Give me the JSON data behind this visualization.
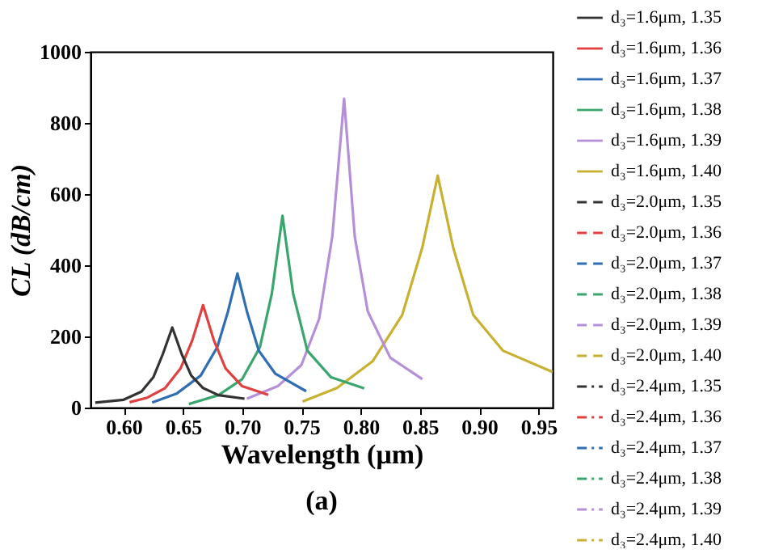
{
  "chart_data": {
    "type": "line",
    "xlabel": "Wavelength (μm)",
    "ylabel": "CL (dB/cm)",
    "annotations": [
      "(a)"
    ],
    "xlim": [
      0.572,
      0.962
    ],
    "ylim": [
      0,
      1000
    ],
    "xticks": [
      {
        "value": 0.6,
        "label": "0.60"
      },
      0.65,
      {
        "value": 0.7,
        "label": "0.70"
      },
      0.75,
      {
        "value": 0.8,
        "label": "0.80"
      },
      0.85,
      {
        "value": 0.9,
        "label": "0.90"
      },
      0.95
    ],
    "yticks": [
      0,
      200,
      400,
      600,
      800,
      1000
    ],
    "grid": false,
    "legend": "right",
    "marker": "none",
    "series": [
      {
        "name": "d₃=1.6μm, 1.35",
        "color": "#333333",
        "line_style": "solid",
        "x": [
          0.576,
          0.6,
          0.615,
          0.625,
          0.633,
          0.641,
          0.649,
          0.657,
          0.667,
          0.68,
          0.702
        ],
        "values": [
          14,
          22,
          45,
          85,
          150,
          225,
          150,
          90,
          55,
          35,
          25
        ]
      },
      {
        "name": "d₃=1.6μm, 1.36",
        "color": "#e0403f",
        "line_style": "solid",
        "x": [
          0.605,
          0.62,
          0.635,
          0.648,
          0.658,
          0.667,
          0.676,
          0.686,
          0.7,
          0.722
        ],
        "values": [
          15,
          28,
          55,
          110,
          190,
          288,
          190,
          110,
          60,
          36
        ]
      },
      {
        "name": "d₃=1.6μm, 1.37",
        "color": "#2f6eb5",
        "line_style": "solid",
        "x": [
          0.624,
          0.645,
          0.665,
          0.679,
          0.688,
          0.696,
          0.704,
          0.714,
          0.728,
          0.754
        ],
        "values": [
          14,
          40,
          90,
          170,
          270,
          377,
          270,
          160,
          95,
          46
        ]
      },
      {
        "name": "d₃=1.6μm, 1.38",
        "color": "#3aa66e",
        "line_style": "solid",
        "x": [
          0.655,
          0.68,
          0.7,
          0.715,
          0.725,
          0.734,
          0.743,
          0.755,
          0.775,
          0.803
        ],
        "values": [
          10,
          35,
          80,
          170,
          320,
          539,
          320,
          160,
          85,
          54
        ]
      },
      {
        "name": "d₃=1.6μm, 1.39",
        "color": "#b58fd8",
        "line_style": "solid",
        "x": [
          0.704,
          0.73,
          0.75,
          0.765,
          0.776,
          0.786,
          0.795,
          0.806,
          0.825,
          0.852
        ],
        "values": [
          25,
          60,
          120,
          250,
          480,
          868,
          480,
          270,
          140,
          80
        ]
      },
      {
        "name": "d₃=1.6μm, 1.40",
        "color": "#c8b030",
        "line_style": "solid",
        "x": [
          0.751,
          0.78,
          0.81,
          0.835,
          0.852,
          0.865,
          0.878,
          0.895,
          0.92,
          0.962
        ],
        "values": [
          17,
          55,
          130,
          260,
          450,
          652,
          450,
          260,
          160,
          100
        ]
      },
      {
        "name": "d₃=2.0μm, 1.35",
        "color": "#333333",
        "line_style": "dashed",
        "values": [
          null
        ]
      },
      {
        "name": "d₃=2.0μm, 1.36",
        "color": "#e0403f",
        "line_style": "dashed",
        "values": [
          null
        ]
      },
      {
        "name": "d₃=2.0μm, 1.37",
        "color": "#2f6eb5",
        "line_style": "dashed",
        "values": [
          null
        ]
      },
      {
        "name": "d₃=2.0μm, 1.38",
        "color": "#3aa66e",
        "line_style": "dashed",
        "values": [
          null
        ]
      },
      {
        "name": "d₃=2.0μm, 1.39",
        "color": "#b58fd8",
        "line_style": "dashed",
        "values": [
          null
        ]
      },
      {
        "name": "d₃=2.0μm, 1.40",
        "color": "#c8b030",
        "line_style": "dashed",
        "values": [
          null
        ]
      },
      {
        "name": "d₃=2.4μm, 1.35",
        "color": "#333333",
        "line_style": "dashdot",
        "values": [
          null
        ]
      },
      {
        "name": "d₃=2.4μm, 1.36",
        "color": "#e0403f",
        "line_style": "dashdot",
        "values": [
          null
        ]
      },
      {
        "name": "d₃=2.4μm, 1.37",
        "color": "#2f6eb5",
        "line_style": "dashdot",
        "values": [
          null
        ]
      },
      {
        "name": "d₃=2.4μm, 1.38",
        "color": "#3aa66e",
        "line_style": "dashdot",
        "values": [
          null
        ]
      },
      {
        "name": "d₃=2.4μm, 1.39",
        "color": "#b58fd8",
        "line_style": "dashdot",
        "values": [
          null
        ]
      },
      {
        "name": "d₃=2.4μm, 1.40",
        "color": "#c8b030",
        "line_style": "dashdot",
        "values": [
          null
        ]
      }
    ]
  }
}
